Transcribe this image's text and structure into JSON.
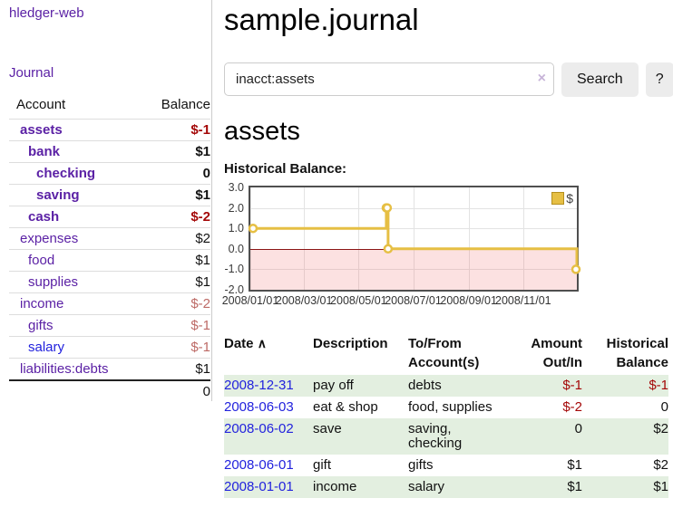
{
  "colors": {
    "purple": "#5b21a5",
    "blue": "#2222dd",
    "negStrong": "#a40808",
    "negSoft": "#bd6a66",
    "stripe": "#e3efe0",
    "gold": "#e6bf44",
    "zero": "#8b1515",
    "plotBorder": "#4f4f4f",
    "btnBg": "#ececec",
    "clear": "#c7b4d8"
  },
  "brand": "hledger-web",
  "nav": {
    "journal": "Journal"
  },
  "sidebar": {
    "account_header": "Account",
    "balance_header": "Balance",
    "rows": [
      {
        "name": "assets",
        "balance": "$-1"
      },
      {
        "name": "bank",
        "balance": "$1"
      },
      {
        "name": "checking",
        "balance": "0"
      },
      {
        "name": "saving",
        "balance": "$1"
      },
      {
        "name": "cash",
        "balance": "$-2"
      },
      {
        "name": "expenses",
        "balance": "$2"
      },
      {
        "name": "food",
        "balance": "$1"
      },
      {
        "name": "supplies",
        "balance": "$1"
      },
      {
        "name": "income",
        "balance": "$-2"
      },
      {
        "name": "gifts",
        "balance": "$-1"
      },
      {
        "name": "salary",
        "balance": "$-1"
      },
      {
        "name": "liabilities:debts",
        "balance": "$1"
      }
    ],
    "total": "0"
  },
  "main": {
    "title": "sample.journal",
    "search": {
      "value": "inacct:assets",
      "clear_icon": "×",
      "search_button": "Search",
      "help_button": "?"
    },
    "account_heading": "assets",
    "chart_title": "Historical Balance:"
  },
  "chart_data": {
    "type": "line",
    "subtype": "step",
    "title": "Historical Balance:",
    "legend_position": "top-right",
    "grid": true,
    "ylim": [
      -2,
      3
    ],
    "xlim_days": [
      0,
      365
    ],
    "y_ticks": [
      "3.0",
      "2.0",
      "1.0",
      "0.0",
      "-1.0",
      "-2.0"
    ],
    "x_ticks": [
      {
        "label": "2008/01/01",
        "day": 0
      },
      {
        "label": "2008/03/01",
        "day": 60
      },
      {
        "label": "2008/05/01",
        "day": 121
      },
      {
        "label": "2008/07/01",
        "day": 182
      },
      {
        "label": "2008/09/01",
        "day": 244
      },
      {
        "label": "2008/11/01",
        "day": 305
      }
    ],
    "negative_region_shaded": true,
    "series": [
      {
        "name": "$",
        "color": "#e6bf44",
        "points": [
          {
            "date": "2008/01/01",
            "day": 0,
            "value": 1
          },
          {
            "date": "2008/06/01",
            "day": 152,
            "value": 2
          },
          {
            "date": "2008/06/02",
            "day": 153,
            "value": 2
          },
          {
            "date": "2008/06/03",
            "day": 154,
            "value": 0
          },
          {
            "date": "2008/12/31",
            "day": 365,
            "value": -1
          }
        ]
      }
    ]
  },
  "register": {
    "columns": {
      "date": "Date",
      "description": "Description",
      "accounts": "To/From\nAccount(s)",
      "amount": "Amount\nOut/In",
      "balance": "Historical\nBalance"
    },
    "sort_icon": "∧",
    "rows": [
      {
        "date": "2008-12-31",
        "description": "pay off",
        "accounts": "debts",
        "amount": "$-1",
        "balance": "$-1"
      },
      {
        "date": "2008-06-03",
        "description": "eat & shop",
        "accounts": "food, supplies",
        "amount": "$-2",
        "balance": "0"
      },
      {
        "date": "2008-06-02",
        "description": "save",
        "accounts": "saving,\nchecking",
        "amount": "0",
        "balance": "$2"
      },
      {
        "date": "2008-06-01",
        "description": "gift",
        "accounts": "gifts",
        "amount": "$1",
        "balance": "$2"
      },
      {
        "date": "2008-01-01",
        "description": "income",
        "accounts": "salary",
        "amount": "$1",
        "balance": "$1"
      }
    ]
  }
}
